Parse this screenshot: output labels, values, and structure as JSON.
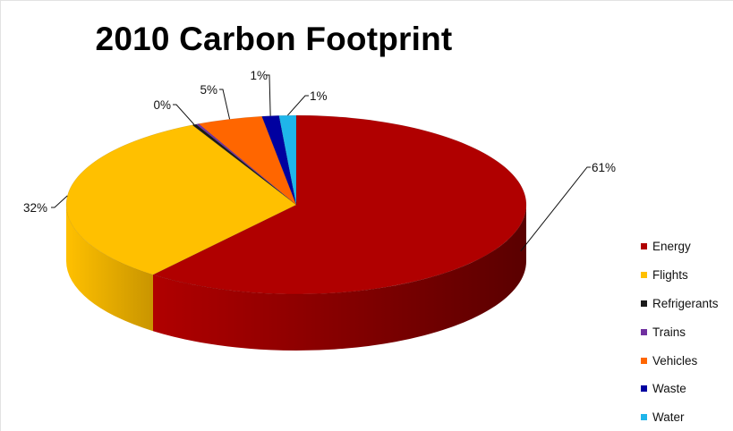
{
  "chart_data": {
    "type": "pie",
    "title": "2010 Carbon Footprint",
    "slices": [
      {
        "label": "Energy",
        "value": 61,
        "display": "61%",
        "color": "#b00000",
        "dark": "#5a0000"
      },
      {
        "label": "Flights",
        "value": 32,
        "display": "32%",
        "color": "#ffc000",
        "dark": "#c99500"
      },
      {
        "label": "Refrigerants",
        "value": 0.3,
        "display": "0%",
        "color": "#1a1a1a",
        "dark": "#000000"
      },
      {
        "label": "Trains",
        "value": 0.2,
        "display": "",
        "color": "#7030a0",
        "dark": "#4a1f6b"
      },
      {
        "label": "Vehicles",
        "value": 4.6,
        "display": "5%",
        "color": "#ff6600",
        "dark": "#b34700"
      },
      {
        "label": "Waste",
        "value": 1.2,
        "display": "1%",
        "color": "#0000a0",
        "dark": "#00005a"
      },
      {
        "label": "Water",
        "value": 1.2,
        "display": "1%",
        "color": "#1fb5ea",
        "dark": "#137aa0"
      }
    ],
    "legend_position": "right",
    "style": "3d-pie"
  }
}
